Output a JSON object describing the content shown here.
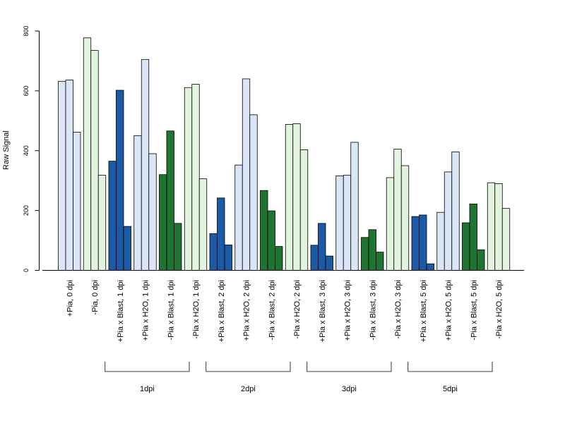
{
  "chart_data": {
    "type": "bar",
    "ylabel": "Raw Signal",
    "ylim": [
      0,
      800
    ],
    "yticks": [
      0,
      200,
      400,
      600,
      800
    ],
    "grid": false,
    "categories": [
      "+Pia, 0 dpi",
      "-Pia, 0 dpi",
      "+Pia x Blast, 1 dpi",
      "+Pia x H2O, 1 dpi",
      "-Pia x Blast, 1 dpi",
      "-Pia x H2O, 1 dpi",
      "+Pia x Blast, 2 dpi",
      "+Pia x H2O, 2 dpi",
      "-Pia x Blast, 2 dpi",
      "-Pia x H2O, 2 dpi",
      "+Pia x Blast, 3 dpi",
      "+Pia x H2O, 3 dpi",
      "-Pia x Blast, 3 dpi",
      "-Pia x H2O, 3 dpi",
      "+Pia x Blast, 5 dpi",
      "+Pia x H2O, 5 dpi",
      "-Pia x Blast, 5 dpi",
      "-Pia x H2O, 5 dpi"
    ],
    "values": [
      [
        632,
        636,
        462
      ],
      [
        777,
        735,
        318
      ],
      [
        365,
        602,
        147
      ],
      [
        450,
        705,
        390
      ],
      [
        320,
        466,
        157
      ],
      [
        611,
        622,
        306
      ],
      [
        123,
        242,
        85
      ],
      [
        352,
        640,
        520
      ],
      [
        267,
        199,
        80
      ],
      [
        488,
        490,
        403
      ],
      [
        84,
        157,
        48
      ],
      [
        316,
        318,
        428
      ],
      [
        110,
        136,
        61
      ],
      [
        310,
        405,
        350
      ],
      [
        180,
        185,
        22
      ],
      [
        194,
        329,
        396
      ],
      [
        159,
        222,
        69
      ],
      [
        293,
        290,
        207
      ]
    ],
    "bar_colors": [
      "#dae6f6",
      "#e2f4dd",
      "#1c5aa6",
      "#dae6f6",
      "#1f7432",
      "#e2f4dd",
      "#1c5aa6",
      "#dae6f6",
      "#1f7432",
      "#e2f4dd",
      "#1c5aa6",
      "#dae6f6",
      "#1f7432",
      "#e2f4dd",
      "#1c5aa6",
      "#dae6f6",
      "#1f7432",
      "#e2f4dd"
    ],
    "groups": [
      {
        "label": "1dpi",
        "from": 2,
        "to": 5
      },
      {
        "label": "2dpi",
        "from": 6,
        "to": 9
      },
      {
        "label": "3dpi",
        "from": 10,
        "to": 13
      },
      {
        "label": "5dpi",
        "from": 14,
        "to": 17
      }
    ]
  }
}
